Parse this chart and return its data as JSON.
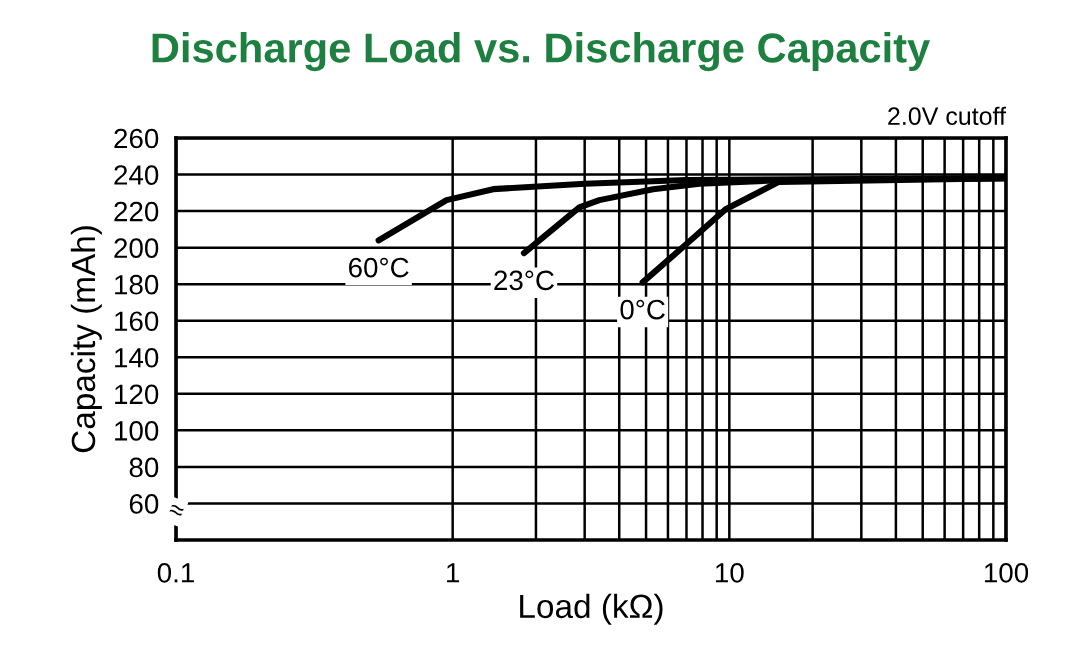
{
  "chart_data": {
    "type": "line",
    "title": "Discharge Load vs. Discharge Capacity",
    "xlabel": "Load (kΩ)",
    "ylabel": "Capacity (mAh)",
    "log": "x",
    "grid": true,
    "legend": false,
    "marker": "none",
    "line_style": "solid",
    "xlim": [
      0.1,
      100
    ],
    "ylim": [
      40,
      260
    ],
    "xticks": [
      0.1,
      1,
      {
        "value": 2,
        "label": null
      },
      {
        "value": 3,
        "label": null
      },
      {
        "value": 4,
        "label": null
      },
      {
        "value": 5,
        "label": null
      },
      {
        "value": 6,
        "label": null
      },
      {
        "value": 7,
        "label": null
      },
      {
        "value": 8,
        "label": null
      },
      {
        "value": 9,
        "label": null
      },
      10,
      {
        "value": 20,
        "label": null
      },
      {
        "value": 30,
        "label": null
      },
      {
        "value": 40,
        "label": null
      },
      {
        "value": 50,
        "label": null
      },
      {
        "value": 60,
        "label": null
      },
      {
        "value": 70,
        "label": null
      },
      {
        "value": 80,
        "label": null
      },
      {
        "value": 90,
        "label": null
      },
      100
    ],
    "yticks": [
      60,
      80,
      100,
      120,
      140,
      160,
      180,
      200,
      220,
      240,
      260
    ],
    "annotations": [
      "2.0V cutoff",
      "≈"
    ],
    "series": [
      {
        "name": "60°C",
        "color": "#000000",
        "x": [
          0.54,
          0.95,
          1.4,
          3.0,
          7.0,
          100
        ],
        "values": [
          204,
          226,
          232,
          235,
          237,
          238
        ]
      },
      {
        "name": "23°C",
        "color": "#000000",
        "x": [
          1.81,
          2.87,
          3.39,
          5.3,
          7.8,
          16,
          100
        ],
        "values": [
          197,
          222,
          226,
          232,
          235,
          237,
          238
        ]
      },
      {
        "name": "0°C",
        "color": "#000000",
        "x": [
          4.86,
          7.0,
          9.7,
          15.1,
          100
        ],
        "values": [
          181,
          202,
          221,
          236,
          238
        ]
      }
    ]
  }
}
